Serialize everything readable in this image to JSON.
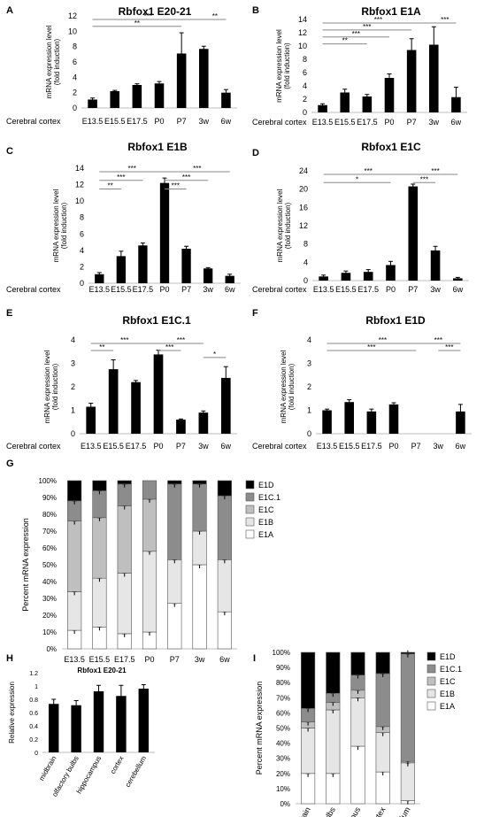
{
  "chart_data": [
    {
      "panel": "A",
      "type": "bar",
      "title": "Rbfox1 E20-21",
      "row_label": "Cerebral cortex",
      "ylabel": [
        "mRNA expression level",
        "(fold induction)"
      ],
      "categories": [
        "E13.5",
        "E15.5",
        "E17.5",
        "P0",
        "P7",
        "3w",
        "6w"
      ],
      "values": [
        1.1,
        2.2,
        3.0,
        3.2,
        7.1,
        7.7,
        2.0
      ],
      "errors": [
        0.2,
        0.1,
        0.15,
        0.25,
        2.7,
        0.35,
        0.4
      ],
      "ylim": [
        0,
        12
      ],
      "yticks": [
        0,
        2,
        4,
        6,
        8,
        10,
        12
      ],
      "sig": [
        {
          "from": "E13.5",
          "to": "3w",
          "label": "***"
        },
        {
          "from": "E13.5",
          "to": "P7",
          "label": "**"
        },
        {
          "from": "3w",
          "to": "6w",
          "label": "**"
        }
      ]
    },
    {
      "panel": "B",
      "type": "bar",
      "title": "Rbfox1 E1A",
      "row_label": "Cerebral cortex",
      "ylabel": [
        "mRNA expression level",
        "(fold induction)"
      ],
      "categories": [
        "E13.5",
        "E15.5",
        "E17.5",
        "P0",
        "P7",
        "3w",
        "6w"
      ],
      "values": [
        1.1,
        3.0,
        2.4,
        5.2,
        9.4,
        10.2,
        2.3
      ],
      "errors": [
        0.2,
        0.5,
        0.3,
        0.6,
        1.7,
        2.7,
        1.5
      ],
      "ylim": [
        0,
        14
      ],
      "yticks": [
        0,
        2,
        4,
        6,
        8,
        10,
        12,
        14
      ],
      "sig": [
        {
          "from": "E13.5",
          "to": "3w",
          "label": "***"
        },
        {
          "from": "E13.5",
          "to": "P7",
          "label": "***"
        },
        {
          "from": "E13.5",
          "to": "P0",
          "label": "***"
        },
        {
          "from": "E13.5",
          "to": "E17.5",
          "label": "**"
        },
        {
          "from": "3w",
          "to": "6w",
          "label": "***"
        }
      ]
    },
    {
      "panel": "C",
      "type": "bar",
      "title": "Rbfox1 E1B",
      "row_label": "Cerebral cortex",
      "ylabel": [
        "mRNA expression level",
        "(fold induction)"
      ],
      "categories": [
        "E13.5",
        "E15.5",
        "E17.5",
        "P0",
        "P7",
        "3w",
        "6w"
      ],
      "values": [
        1.1,
        3.3,
        4.6,
        12.2,
        4.2,
        1.8,
        0.9
      ],
      "errors": [
        0.2,
        0.6,
        0.3,
        0.6,
        0.3,
        0.1,
        0.2
      ],
      "ylim": [
        0,
        14
      ],
      "yticks": [
        0,
        2,
        4,
        6,
        8,
        10,
        12,
        14
      ],
      "sig": [
        {
          "from": "E13.5",
          "to": "P0",
          "label": "***"
        },
        {
          "from": "E13.5",
          "to": "E17.5",
          "label": "***"
        },
        {
          "from": "E13.5",
          "to": "E15.5",
          "label": "**"
        },
        {
          "from": "P0",
          "to": "6w",
          "label": "***"
        },
        {
          "from": "P0",
          "to": "3w",
          "label": "***"
        },
        {
          "from": "P0",
          "to": "P7",
          "label": "***"
        }
      ]
    },
    {
      "panel": "D",
      "type": "bar",
      "title": "Rbfox1 E1C",
      "row_label": "Cerebral cortex",
      "ylabel": [
        "mRNA expression level",
        "(fold induction)"
      ],
      "categories": [
        "E13.5",
        "E15.5",
        "E17.5",
        "P0",
        "P7",
        "3w",
        "6w"
      ],
      "values": [
        0.9,
        1.7,
        1.9,
        3.4,
        20.6,
        6.6,
        0.5
      ],
      "errors": [
        0.3,
        0.4,
        0.5,
        0.8,
        0.5,
        0.9,
        0.2
      ],
      "ylim": [
        0,
        24
      ],
      "yticks": [
        0,
        4,
        8,
        12,
        16,
        20,
        24
      ],
      "sig": [
        {
          "from": "E13.5",
          "to": "P7",
          "label": "***"
        },
        {
          "from": "E13.5",
          "to": "P0",
          "label": "*"
        },
        {
          "from": "P7",
          "to": "6w",
          "label": "***"
        },
        {
          "from": "P7",
          "to": "3w",
          "label": "***"
        }
      ]
    },
    {
      "panel": "E",
      "type": "bar",
      "title": "Rbfox1 E1C.1",
      "row_label": "Cerebral cortex",
      "ylabel": [
        "mRNA expression level",
        "(fold induction)"
      ],
      "categories": [
        "E13.5",
        "E15.5",
        "E17.5",
        "P0",
        "P7",
        "3w",
        "6w"
      ],
      "values": [
        1.15,
        2.75,
        2.2,
        3.38,
        0.6,
        0.9,
        2.38
      ],
      "errors": [
        0.15,
        0.4,
        0.07,
        0.18,
        0.03,
        0.07,
        0.48
      ],
      "ylim": [
        0,
        4
      ],
      "yticks": [
        0,
        1,
        2,
        3,
        4
      ],
      "sig": [
        {
          "from": "E13.5",
          "to": "P0",
          "label": "***"
        },
        {
          "from": "E13.5",
          "to": "E15.5",
          "label": "**"
        },
        {
          "from": "P0",
          "to": "3w",
          "label": "***"
        },
        {
          "from": "P0",
          "to": "P7",
          "label": "***"
        },
        {
          "from": "3w",
          "to": "6w",
          "label": "*"
        }
      ]
    },
    {
      "panel": "F",
      "type": "bar",
      "title": "Rbfox1 E1D",
      "row_label": "Cerebral cortex",
      "ylabel": [
        "mRNA expression level",
        "(fold induction)"
      ],
      "categories": [
        "E13.5",
        "E15.5",
        "E17.5",
        "P0",
        "P7",
        "3w",
        "6w"
      ],
      "values": [
        1.0,
        1.35,
        0.95,
        1.25,
        0,
        0,
        0.95
      ],
      "errors": [
        0.05,
        0.1,
        0.1,
        0.07,
        0,
        0,
        0.3
      ],
      "ylim": [
        0,
        4
      ],
      "yticks": [
        0,
        1,
        2,
        3,
        4
      ],
      "sig": [
        {
          "from": "E13.5",
          "to": "3w",
          "label": "***"
        },
        {
          "from": "E13.5",
          "to": "P7",
          "label": "***"
        },
        {
          "from": "P7",
          "to": "6w",
          "label": "***"
        },
        {
          "from": "3w",
          "to": "6w",
          "label": "***"
        }
      ]
    },
    {
      "panel": "G",
      "type": "stacked-bar",
      "title": "",
      "ylabel": "Percent mRNA expression",
      "categories": [
        "E13.5",
        "E15.5",
        "E17.5",
        "P0",
        "P7",
        "3w",
        "6w"
      ],
      "yticks": [
        "0%",
        "10%",
        "20%",
        "30%",
        "40%",
        "50%",
        "60%",
        "70%",
        "80%",
        "90%",
        "100%"
      ],
      "legend_position": "right",
      "series": [
        {
          "name": "E1A",
          "color": "#ffffff",
          "values": [
            11,
            13,
            9,
            10,
            27,
            50,
            22
          ]
        },
        {
          "name": "E1B",
          "color": "#e6e6e6",
          "values": [
            23,
            29,
            36,
            48,
            26,
            20,
            31
          ]
        },
        {
          "name": "E1C",
          "color": "#bfbfbf",
          "values": [
            42,
            36,
            40,
            31,
            0,
            0,
            0
          ]
        },
        {
          "name": "E1C.1",
          "color": "#8c8c8c",
          "values": [
            12,
            16,
            13,
            11,
            45,
            28,
            38
          ]
        },
        {
          "name": "E1D",
          "color": "#000000",
          "values": [
            12,
            6,
            2,
            0,
            2,
            2,
            9
          ]
        }
      ]
    },
    {
      "panel": "H",
      "type": "bar",
      "title": "Rbfox1 E20-21",
      "ylabel": "Relative expression",
      "categories": [
        "midbrain",
        "olfactory bulbs",
        "hippocampus",
        "cortex",
        "cerebellum"
      ],
      "values": [
        0.73,
        0.71,
        0.92,
        0.85,
        0.96
      ],
      "errors": [
        0.07,
        0.07,
        0.09,
        0.16,
        0.06
      ],
      "ylim": [
        0,
        1.2
      ],
      "yticks": [
        "0",
        "0.2",
        "0.4",
        "0.6",
        "0.8",
        "1",
        "1.2"
      ]
    },
    {
      "panel": "I",
      "type": "stacked-bar",
      "title": "",
      "ylabel": "Percent mRNA expression",
      "categories": [
        "midbrain",
        "olfactory bulbs",
        "hippocampus",
        "cortex",
        "cerebellum"
      ],
      "yticks": [
        "0%",
        "10%",
        "20%",
        "30%",
        "40%",
        "50%",
        "60%",
        "70%",
        "80%",
        "90%",
        "100%"
      ],
      "legend_position": "right",
      "series": [
        {
          "name": "E1A",
          "color": "#ffffff",
          "values": [
            20,
            20,
            38,
            21,
            2
          ]
        },
        {
          "name": "E1B",
          "color": "#e6e6e6",
          "values": [
            30,
            42,
            32,
            26,
            25
          ]
        },
        {
          "name": "E1C",
          "color": "#bfbfbf",
          "values": [
            4,
            5,
            5,
            4,
            1
          ]
        },
        {
          "name": "E1C.1",
          "color": "#8c8c8c",
          "values": [
            9,
            6,
            10,
            35,
            71
          ]
        },
        {
          "name": "E1D",
          "color": "#000000",
          "values": [
            37,
            27,
            15,
            14,
            1
          ]
        }
      ]
    }
  ]
}
